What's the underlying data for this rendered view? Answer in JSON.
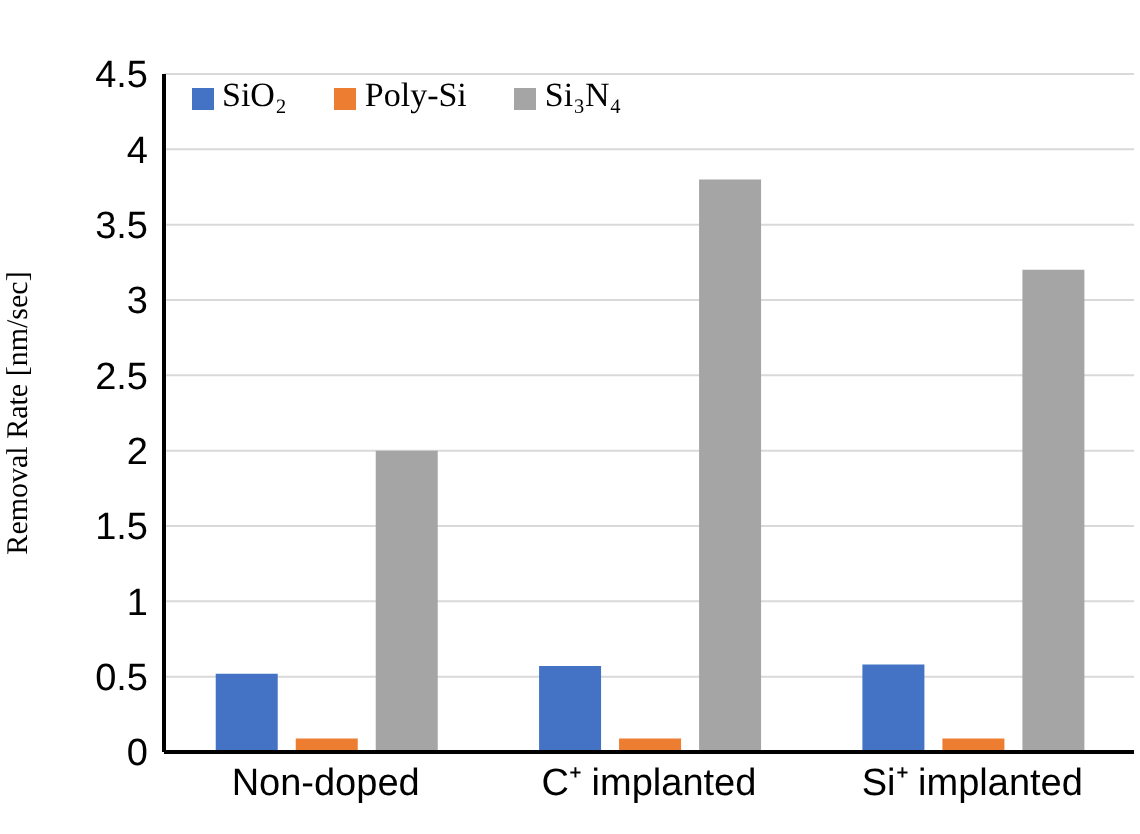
{
  "chart_data": {
    "type": "bar",
    "ylabel": "Removal Rate [nm/sec]",
    "categories": [
      "Non-doped",
      "C⁺ implanted",
      "Si⁺ implanted"
    ],
    "series": [
      {
        "name": "SiO₂",
        "color": "#4472c4",
        "values": [
          0.52,
          0.57,
          0.58
        ]
      },
      {
        "name": "Poly-Si",
        "color": "#ed7d31",
        "values": [
          0.09,
          0.09,
          0.09
        ]
      },
      {
        "name": "Si₃N₄",
        "color": "#a5a5a5",
        "values": [
          2.0,
          3.8,
          3.2
        ]
      }
    ],
    "ylim": [
      0,
      4.5
    ],
    "yticks": [
      0,
      0.5,
      1,
      1.5,
      2,
      2.5,
      3,
      3.5,
      4,
      4.5
    ],
    "grid": "y",
    "legend": "top left"
  }
}
